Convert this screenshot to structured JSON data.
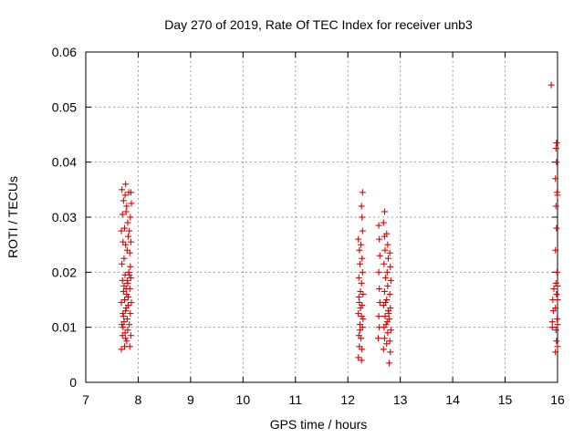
{
  "chart_data": {
    "type": "scatter",
    "title": "Day 270 of 2019, Rate Of TEC Index for receiver unb3",
    "xlabel": "GPS time / hours",
    "ylabel": "ROTI / TECUs",
    "xlim": [
      7,
      16
    ],
    "ylim": [
      0,
      0.06
    ],
    "x_ticks": [
      "7",
      "8",
      "9",
      "10",
      "11",
      "12",
      "13",
      "14",
      "15",
      "16"
    ],
    "y_ticks": [
      "0",
      "0.01",
      "0.02",
      "0.03",
      "0.04",
      "0.05",
      "0.06"
    ],
    "grid": true,
    "marker": "plus",
    "color": "#e00000",
    "points": [
      [
        7.68,
        0.006
      ],
      [
        7.7,
        0.0085
      ],
      [
        7.69,
        0.0105
      ],
      [
        7.71,
        0.0125
      ],
      [
        7.68,
        0.0145
      ],
      [
        7.72,
        0.0165
      ],
      [
        7.7,
        0.0185
      ],
      [
        7.69,
        0.0215
      ],
      [
        7.71,
        0.0255
      ],
      [
        7.68,
        0.0275
      ],
      [
        7.7,
        0.0305
      ],
      [
        7.72,
        0.033
      ],
      [
        7.69,
        0.035
      ],
      [
        7.74,
        0.0065
      ],
      [
        7.75,
        0.009
      ],
      [
        7.73,
        0.011
      ],
      [
        7.76,
        0.013
      ],
      [
        7.74,
        0.015
      ],
      [
        7.77,
        0.017
      ],
      [
        7.75,
        0.0195
      ],
      [
        7.73,
        0.0225
      ],
      [
        7.76,
        0.025
      ],
      [
        7.74,
        0.028
      ],
      [
        7.77,
        0.031
      ],
      [
        7.75,
        0.034
      ],
      [
        7.76,
        0.036
      ],
      [
        7.78,
        0.0075
      ],
      [
        7.8,
        0.0095
      ],
      [
        7.79,
        0.0115
      ],
      [
        7.81,
        0.014
      ],
      [
        7.78,
        0.016
      ],
      [
        7.8,
        0.018
      ],
      [
        7.82,
        0.02
      ],
      [
        7.79,
        0.024
      ],
      [
        7.81,
        0.0265
      ],
      [
        7.8,
        0.029
      ],
      [
        7.78,
        0.032
      ],
      [
        7.82,
        0.0345
      ],
      [
        7.84,
        0.0065
      ],
      [
        7.86,
        0.0085
      ],
      [
        7.83,
        0.0105
      ],
      [
        7.85,
        0.0125
      ],
      [
        7.87,
        0.0145
      ],
      [
        7.84,
        0.017
      ],
      [
        7.86,
        0.019
      ],
      [
        7.85,
        0.021
      ],
      [
        7.84,
        0.0235
      ],
      [
        7.86,
        0.0255
      ],
      [
        7.83,
        0.0275
      ],
      [
        7.85,
        0.03
      ],
      [
        7.87,
        0.0325
      ],
      [
        7.86,
        0.0345
      ],
      [
        7.72,
        0.012
      ],
      [
        7.77,
        0.0135
      ],
      [
        7.81,
        0.0155
      ],
      [
        7.73,
        0.0175
      ],
      [
        7.79,
        0.0185
      ],
      [
        7.83,
        0.0195
      ],
      [
        7.71,
        0.01
      ],
      [
        7.76,
        0.008
      ],
      [
        12.2,
        0.0045
      ],
      [
        12.22,
        0.0065
      ],
      [
        12.21,
        0.0085
      ],
      [
        12.23,
        0.0105
      ],
      [
        12.2,
        0.0125
      ],
      [
        12.22,
        0.0145
      ],
      [
        12.24,
        0.0165
      ],
      [
        12.21,
        0.019
      ],
      [
        12.23,
        0.0215
      ],
      [
        12.22,
        0.024
      ],
      [
        12.2,
        0.026
      ],
      [
        12.26,
        0.004
      ],
      [
        12.27,
        0.006
      ],
      [
        12.25,
        0.008
      ],
      [
        12.28,
        0.01
      ],
      [
        12.26,
        0.012
      ],
      [
        12.27,
        0.014
      ],
      [
        12.29,
        0.016
      ],
      [
        12.26,
        0.018
      ],
      [
        12.28,
        0.02
      ],
      [
        12.27,
        0.0225
      ],
      [
        12.25,
        0.025
      ],
      [
        12.28,
        0.0275
      ],
      [
        12.27,
        0.03
      ],
      [
        12.26,
        0.032
      ],
      [
        12.28,
        0.0345
      ],
      [
        12.23,
        0.0095
      ],
      [
        12.29,
        0.0115
      ],
      [
        12.24,
        0.0135
      ],
      [
        12.21,
        0.0155
      ],
      [
        12.58,
        0.008
      ],
      [
        12.6,
        0.01
      ],
      [
        12.59,
        0.012
      ],
      [
        12.61,
        0.0145
      ],
      [
        12.6,
        0.017
      ],
      [
        12.59,
        0.02
      ],
      [
        12.61,
        0.023
      ],
      [
        12.6,
        0.026
      ],
      [
        12.59,
        0.0285
      ],
      [
        12.68,
        0.006
      ],
      [
        12.7,
        0.008
      ],
      [
        12.69,
        0.01
      ],
      [
        12.71,
        0.012
      ],
      [
        12.68,
        0.014
      ],
      [
        12.7,
        0.0165
      ],
      [
        12.72,
        0.019
      ],
      [
        12.69,
        0.0215
      ],
      [
        12.71,
        0.024
      ],
      [
        12.7,
        0.0265
      ],
      [
        12.68,
        0.029
      ],
      [
        12.7,
        0.031
      ],
      [
        12.74,
        0.007
      ],
      [
        12.76,
        0.009
      ],
      [
        12.75,
        0.011
      ],
      [
        12.77,
        0.013
      ],
      [
        12.74,
        0.015
      ],
      [
        12.76,
        0.0175
      ],
      [
        12.75,
        0.02
      ],
      [
        12.77,
        0.0225
      ],
      [
        12.76,
        0.025
      ],
      [
        12.74,
        0.027
      ],
      [
        12.79,
        0.0035
      ],
      [
        12.81,
        0.0055
      ],
      [
        12.8,
        0.0075
      ],
      [
        12.82,
        0.0095
      ],
      [
        12.79,
        0.0115
      ],
      [
        12.81,
        0.0135
      ],
      [
        12.8,
        0.016
      ],
      [
        12.82,
        0.0185
      ],
      [
        12.81,
        0.021
      ],
      [
        12.8,
        0.0235
      ],
      [
        12.73,
        0.0105
      ],
      [
        12.78,
        0.0125
      ],
      [
        12.72,
        0.0145
      ],
      [
        15.88,
        0.054
      ],
      [
        15.9,
        0.011
      ],
      [
        15.92,
        0.013
      ],
      [
        15.91,
        0.015
      ],
      [
        15.93,
        0.017
      ],
      [
        15.9,
        0.01
      ],
      [
        15.96,
        0.0055
      ],
      [
        15.98,
        0.0075
      ],
      [
        15.97,
        0.0095
      ],
      [
        15.99,
        0.0115
      ],
      [
        15.96,
        0.0135
      ],
      [
        15.98,
        0.016
      ],
      [
        15.97,
        0.018
      ],
      [
        15.99,
        0.02
      ],
      [
        15.96,
        0.024
      ],
      [
        15.98,
        0.028
      ],
      [
        15.97,
        0.032
      ],
      [
        15.99,
        0.0345
      ],
      [
        15.96,
        0.037
      ],
      [
        15.98,
        0.04
      ],
      [
        15.97,
        0.0425
      ],
      [
        15.98,
        0.0435
      ],
      [
        16.0,
        0.0065
      ],
      [
        16.0,
        0.0105
      ],
      [
        16.0,
        0.015
      ],
      [
        16.0,
        0.0175
      ],
      [
        16.0,
        0.034
      ]
    ]
  }
}
